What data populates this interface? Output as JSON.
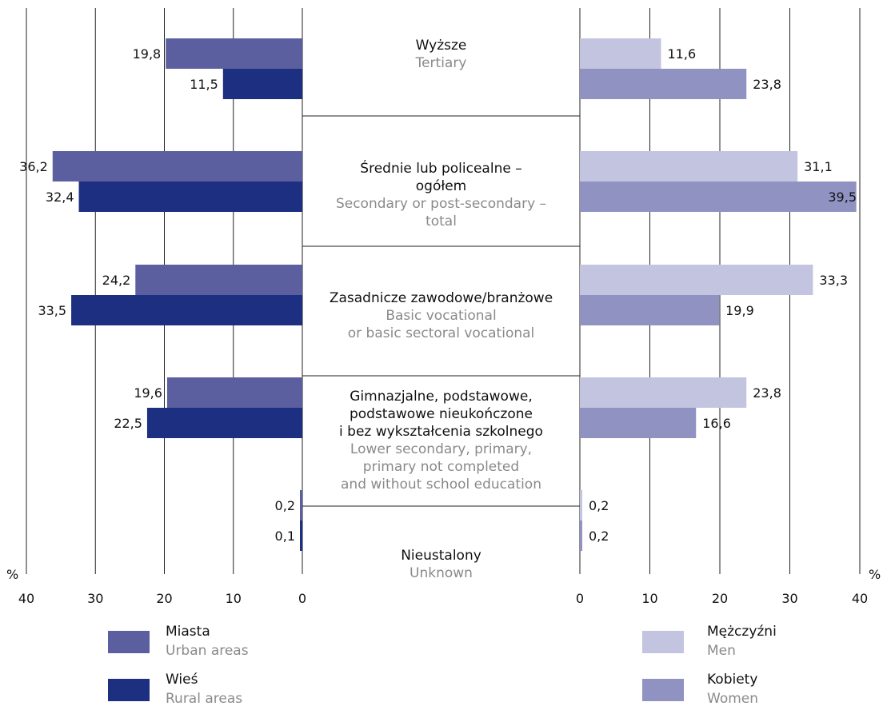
{
  "chart_data": {
    "type": "bar",
    "orientation": "horizontal",
    "layout": "butterfly",
    "unit_label": "%",
    "categories": [
      {
        "pl": [
          "Wyższe"
        ],
        "en": [
          "Tertiary"
        ]
      },
      {
        "pl": [
          "Średnie lub policealne –",
          "ogółem"
        ],
        "en": [
          "Secondary or post-secondary –",
          "total"
        ]
      },
      {
        "pl": [
          "Zasadnicze zawodowe/branżowe"
        ],
        "en": [
          "Basic vocational",
          "or basic sectoral vocational"
        ]
      },
      {
        "pl": [
          "Gimnazjalne, podstawowe,",
          "podstawowe nieukończone",
          "i bez wykształcenia szkolnego"
        ],
        "en": [
          "Lower secondary, primary,",
          "primary not completed",
          "and without school education"
        ]
      },
      {
        "pl": [
          "Nieustalony"
        ],
        "en": [
          "Unknown"
        ]
      }
    ],
    "left_panel": {
      "xlim": [
        0,
        40
      ],
      "ticks": [
        40,
        30,
        20,
        10,
        0
      ],
      "series": [
        {
          "name_pl": "Miasta",
          "name_en": "Urban areas",
          "color": "#5b5fa0",
          "values": [
            19.8,
            36.2,
            24.2,
            19.6,
            0.2
          ],
          "labels": [
            "19,8",
            "36,2",
            "24,2",
            "19,6",
            "0,2"
          ]
        },
        {
          "name_pl": "Wieś",
          "name_en": "Rural areas",
          "color": "#1d2f80",
          "values": [
            11.5,
            32.4,
            33.5,
            22.5,
            0.1
          ],
          "labels": [
            "11,5",
            "32,4",
            "33,5",
            "22,5",
            "0,1"
          ]
        }
      ]
    },
    "right_panel": {
      "xlim": [
        0,
        40
      ],
      "ticks": [
        0,
        10,
        20,
        30,
        40
      ],
      "series": [
        {
          "name_pl": "Mężczyźni",
          "name_en": "Men",
          "color": "#c3c4e0",
          "values": [
            11.6,
            31.1,
            33.3,
            23.8,
            0.2
          ],
          "labels": [
            "11,6",
            "31,1",
            "33,3",
            "23,8",
            "0,2"
          ]
        },
        {
          "name_pl": "Kobiety",
          "name_en": "Women",
          "color": "#9092c2",
          "values": [
            23.8,
            39.5,
            19.9,
            16.6,
            0.2
          ],
          "labels": [
            "23,8",
            "39,5",
            "19,9",
            "16,6",
            "0,2"
          ]
        }
      ]
    },
    "grid": true,
    "legend_position": "bottom"
  }
}
